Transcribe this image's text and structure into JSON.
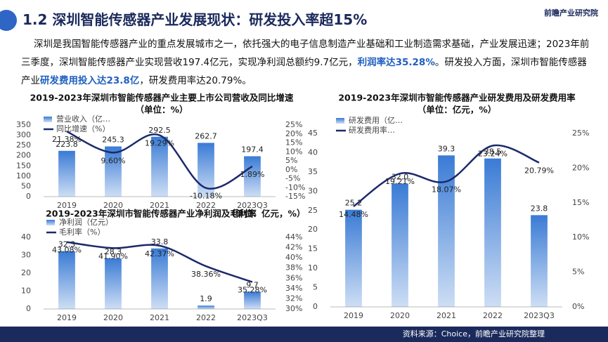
{
  "header": {
    "title": "1.2 深圳智能传感器产业发展现状：研发投入率超15%",
    "logo": "前瞻产业研究院"
  },
  "paragraph": [
    {
      "text": "深圳是我国智能传感器产业的重点发展城市之一，依托强大的电子信息制造产业基础和工业制造需求基础，产业发展迅速；2023年前三季度，深圳智能传感器产业实现营收197.4亿元，实现净利润总额约9.7亿元，",
      "bold": false
    },
    {
      "text": "利润率达35.28%",
      "bold": true
    },
    {
      "text": "。研发投入方面，深圳市智能传感器产业",
      "bold": false
    },
    {
      "text": "研发费用投入达23.8亿",
      "bold": true
    },
    {
      "text": "，研发费用率达20.79%。",
      "bold": false
    }
  ],
  "footer": {
    "source": "资料来源：Choice，前瞻产业研究院整理"
  },
  "chart_data": [
    {
      "type": "bar_line",
      "title": "2019-2023年深圳市智能传感器产业主要上市公司营收及同比增速",
      "subtitle": "（单位：%）",
      "categories": [
        "2019",
        "2020",
        "2021",
        "2022",
        "2023Q3"
      ],
      "series": [
        {
          "name": "营业收入（亿…",
          "type": "bar",
          "color": "#3a7bd5",
          "values": [
            223.8,
            245.3,
            292.5,
            262.7,
            197.4
          ]
        },
        {
          "name": "同比增速（%）",
          "type": "line",
          "axis": "y2",
          "color": "#1b2a6b",
          "values": [
            21.38,
            9.6,
            19.29,
            -10.18,
            1.89
          ],
          "value_labels": [
            "21.38%",
            "9.60%",
            "19.29%",
            "-10.18%",
            "1.89%"
          ]
        }
      ],
      "ylim": [
        0,
        350
      ],
      "yticks": [
        0,
        50,
        100,
        150,
        200,
        250,
        300,
        350
      ],
      "y2lim": [
        -15,
        25
      ],
      "y2ticks": [
        {
          "value": -15,
          "label": "-15%"
        },
        {
          "value": -10,
          "label": "-10%"
        },
        {
          "value": -5,
          "label": "-5%"
        },
        {
          "value": 0,
          "label": "0%"
        },
        {
          "value": 5,
          "label": "5%"
        },
        {
          "value": 10,
          "label": "10%"
        },
        {
          "value": 15,
          "label": "15%"
        },
        {
          "value": 20,
          "label": "20%"
        },
        {
          "value": 25,
          "label": "25%"
        }
      ]
    },
    {
      "type": "bar_line",
      "title": "2019-2023年深圳市智能传感器产业净利润及毛利率",
      "subtitle": "（单位：亿元，%）",
      "categories": [
        "2019",
        "2020",
        "2021",
        "2022",
        "2023Q3"
      ],
      "series": [
        {
          "name": "净利润（亿元）",
          "type": "bar",
          "color": "#3a7bd5",
          "values": [
            32.3,
            28.3,
            33.8,
            1.9,
            9.7
          ]
        },
        {
          "name": "毛利率（%）",
          "type": "line",
          "axis": "y2",
          "color": "#1b2a6b",
          "values": [
            43.08,
            41.9,
            42.37,
            38.36,
            35.28
          ],
          "value_labels": [
            "43.08%",
            "41.90%",
            "42.37%",
            "38.36%",
            "35.28%"
          ]
        }
      ],
      "ylim": [
        0,
        40
      ],
      "yticks": [
        0,
        10,
        20,
        30,
        40
      ],
      "y2lim": [
        30,
        44
      ],
      "y2ticks": [
        {
          "value": 30,
          "label": "30%"
        },
        {
          "value": 32,
          "label": "32%"
        },
        {
          "value": 34,
          "label": "34%"
        },
        {
          "value": 36,
          "label": "36%"
        },
        {
          "value": 38,
          "label": "38%"
        },
        {
          "value": 40,
          "label": "40%"
        },
        {
          "value": 42,
          "label": "42%"
        },
        {
          "value": 44,
          "label": "44%"
        }
      ]
    },
    {
      "type": "bar_line",
      "title": "2019-2023年深圳市智能传感器产业研发费用及研发费用率",
      "subtitle": "（单位：亿元，%）",
      "categories": [
        "2019",
        "2020",
        "2021",
        "2022",
        "2023Q3"
      ],
      "series": [
        {
          "name": "研发费用（亿…",
          "type": "bar",
          "color": "#3a7bd5",
          "values": [
            25.2,
            32.0,
            39.3,
            38.5,
            23.8
          ],
          "value_labels": [
            "25.2",
            "32.0",
            "39.3",
            "38.5",
            "23.8"
          ]
        },
        {
          "name": "研发费用率…",
          "type": "line",
          "axis": "y2",
          "color": "#1b2a6b",
          "values": [
            14.48,
            19.21,
            18.07,
            23.24,
            20.79
          ],
          "value_labels": [
            "14.48%",
            "19.21%",
            "18.07%",
            "23.24%",
            "20.79%"
          ]
        }
      ],
      "ylim": [
        0,
        45
      ],
      "yticks": [
        0,
        5,
        10,
        15,
        20,
        25,
        30,
        35,
        40,
        45
      ],
      "y2lim": [
        0,
        25
      ],
      "y2ticks": [
        {
          "value": 0,
          "label": "0%"
        },
        {
          "value": 5,
          "label": "5%"
        },
        {
          "value": 10,
          "label": "10%"
        },
        {
          "value": 15,
          "label": "15%"
        },
        {
          "value": 20,
          "label": "20%"
        },
        {
          "value": 25,
          "label": "25%"
        }
      ]
    }
  ]
}
